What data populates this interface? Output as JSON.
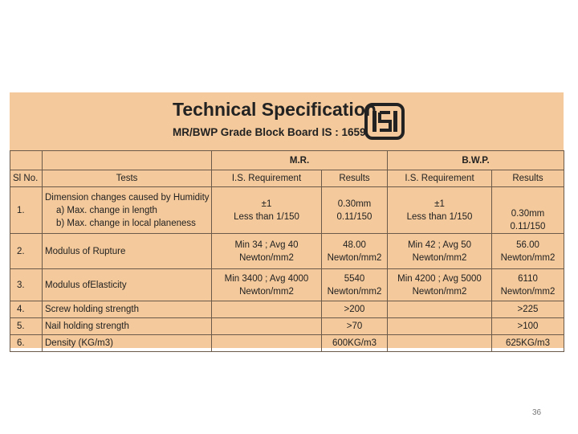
{
  "header": {
    "title": "Technical Specification",
    "subtitle": "MR/BWP Grade Block Board IS : 1659"
  },
  "table": {
    "groups": [
      "M.R.",
      "B.W.P."
    ],
    "columns": [
      "Sl No.",
      "Tests",
      "I.S. Requirement",
      "Results",
      "I.S. Requirement",
      "Results"
    ],
    "rows": [
      [
        "1.",
        [
          "Dimension changes caused by Humidity",
          "a)   Max. change in length",
          "b)   Max. change in local planeness"
        ],
        [
          "±1",
          "Less than 1/150"
        ],
        [
          "0.30mm",
          "0.11/150"
        ],
        [
          "±1",
          "Less than 1/150"
        ],
        [
          "0.30mm",
          "0.11/150"
        ]
      ],
      [
        "2.",
        "Modulus of Rupture",
        [
          "Min 34 ; Avg 40",
          "Newton/mm2"
        ],
        [
          "48.00",
          "Newton/mm2"
        ],
        [
          "Min 42 ; Avg 50",
          "Newton/mm2"
        ],
        [
          "56.00",
          "Newton/mm2"
        ]
      ],
      [
        "3.",
        "Modulus ofElasticity",
        [
          "Min 3400 ; Avg 4000",
          "Newton/mm2"
        ],
        [
          "5540",
          "Newton/mm2"
        ],
        [
          "Min 4200 ; Avg 5000",
          "Newton/mm2"
        ],
        [
          "6110",
          "Newton/mm2"
        ]
      ],
      [
        "4.",
        "Screw holding strength",
        null,
        ">200",
        null,
        ">225"
      ],
      [
        "5.",
        "Nail holding strength",
        null,
        ">70",
        null,
        ">100"
      ],
      [
        "6.",
        "Density (KG/m3)",
        null,
        "600KG/m3",
        null,
        "625KG/m3"
      ]
    ]
  },
  "footer": {
    "page_number": "36"
  }
}
